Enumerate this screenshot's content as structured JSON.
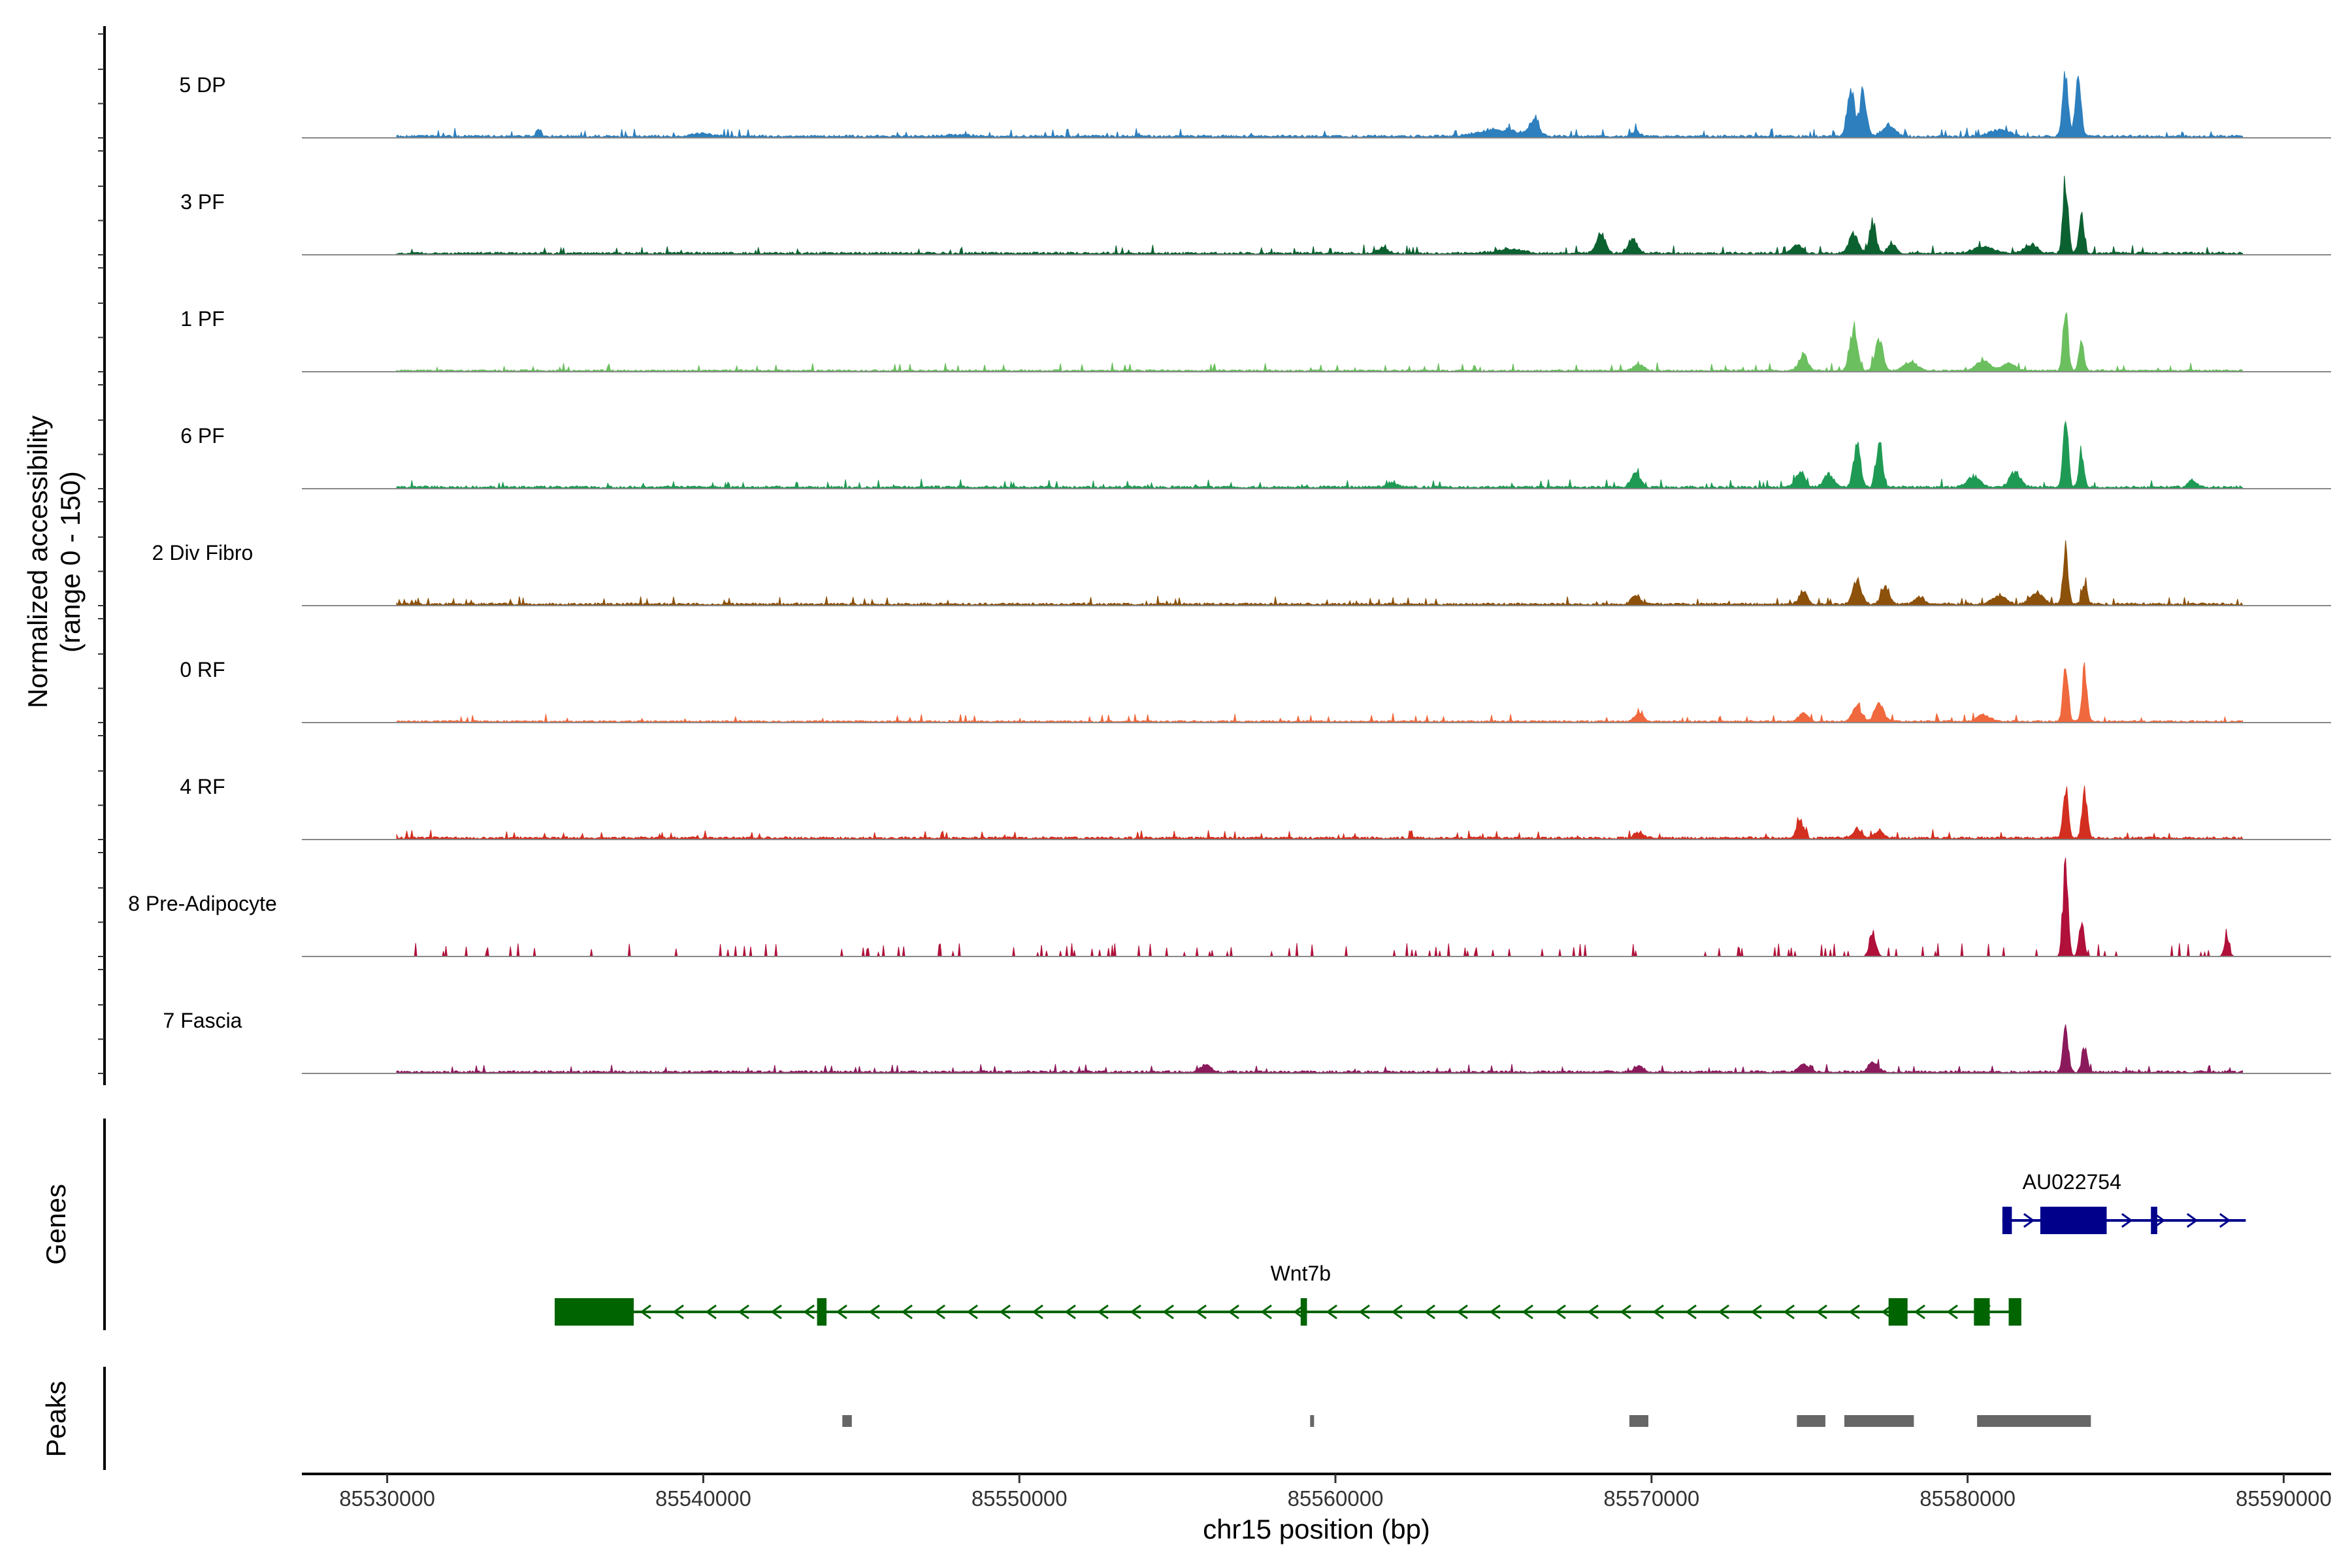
{
  "chart_data": {
    "type": "area",
    "title": "",
    "xlabel": "chr15 position (bp)",
    "ylabel_line1": "Normalized accessibility",
    "ylabel_line2": "(range 0 - 150)",
    "ylim": [
      0,
      150
    ],
    "xlim": [
      85527300,
      85591500
    ],
    "x_ticks": [
      85530000,
      85540000,
      85550000,
      85560000,
      85570000,
      85580000,
      85590000
    ],
    "x_tick_labels": [
      "85530000",
      "85540000",
      "85550000",
      "85560000",
      "85570000",
      "85580000",
      "85590000"
    ],
    "genes_label": "Genes",
    "peaks_label": "Peaks",
    "series": [
      {
        "name": "5 DP",
        "color": "#2d7fbe",
        "sparse": false,
        "baseline": 2,
        "peaks": [
          [
            85534800,
            9,
            70
          ],
          [
            85540000,
            3,
            300
          ],
          [
            85548000,
            2,
            400
          ],
          [
            85565200,
            8,
            600
          ],
          [
            85566300,
            20,
            140
          ],
          [
            85569500,
            6,
            120
          ],
          [
            85576300,
            55,
            110
          ],
          [
            85576700,
            50,
            110
          ],
          [
            85577500,
            12,
            200
          ],
          [
            85581000,
            8,
            300
          ],
          [
            85583100,
            70,
            90
          ],
          [
            85583500,
            60,
            90
          ]
        ]
      },
      {
        "name": "3 PF",
        "color": "#0c6131",
        "sparse": false,
        "baseline": 2,
        "peaks": [
          [
            85561500,
            6,
            150
          ],
          [
            85565500,
            5,
            400
          ],
          [
            85568400,
            22,
            140
          ],
          [
            85569400,
            17,
            140
          ],
          [
            85574600,
            10,
            160
          ],
          [
            85576400,
            22,
            140
          ],
          [
            85577000,
            35,
            100
          ],
          [
            85577600,
            12,
            120
          ],
          [
            85580500,
            8,
            300
          ],
          [
            85582000,
            10,
            200
          ],
          [
            85583100,
            85,
            80
          ],
          [
            85583600,
            40,
            80
          ]
        ]
      },
      {
        "name": "1 PF",
        "color": "#6bbf5f",
        "sparse": false,
        "baseline": 1.5,
        "peaks": [
          [
            85569600,
            8,
            150
          ],
          [
            85574800,
            18,
            140
          ],
          [
            85576400,
            48,
            120
          ],
          [
            85577200,
            35,
            120
          ],
          [
            85578200,
            10,
            200
          ],
          [
            85580500,
            12,
            200
          ],
          [
            85581300,
            8,
            200
          ],
          [
            85583100,
            65,
            80
          ],
          [
            85583600,
            30,
            80
          ]
        ]
      },
      {
        "name": "6 PF",
        "color": "#1f9a54",
        "sparse": false,
        "baseline": 2,
        "peaks": [
          [
            85561800,
            6,
            150
          ],
          [
            85569500,
            16,
            140
          ],
          [
            85574700,
            18,
            140
          ],
          [
            85575600,
            15,
            150
          ],
          [
            85576500,
            48,
            110
          ],
          [
            85577200,
            50,
            100
          ],
          [
            85580200,
            12,
            200
          ],
          [
            85581500,
            18,
            160
          ],
          [
            85583100,
            80,
            80
          ],
          [
            85583600,
            40,
            80
          ],
          [
            85587100,
            8,
            120
          ]
        ]
      },
      {
        "name": "2 Div Fibro",
        "color": "#8c510a",
        "sparse": false,
        "baseline": 2,
        "peaks": [
          [
            85569500,
            11,
            130
          ],
          [
            85574800,
            14,
            130
          ],
          [
            85576500,
            28,
            130
          ],
          [
            85577400,
            20,
            130
          ],
          [
            85578500,
            8,
            150
          ],
          [
            85581000,
            10,
            200
          ],
          [
            85582200,
            12,
            200
          ],
          [
            85583100,
            60,
            80
          ],
          [
            85583700,
            25,
            80
          ]
        ]
      },
      {
        "name": "0 RF",
        "color": "#f0683d",
        "sparse": false,
        "baseline": 1.5,
        "peaks": [
          [
            85569600,
            9,
            130
          ],
          [
            85574800,
            10,
            140
          ],
          [
            85576500,
            18,
            140
          ],
          [
            85577200,
            20,
            140
          ],
          [
            85580500,
            7,
            200
          ],
          [
            85583100,
            58,
            80
          ],
          [
            85583700,
            58,
            80
          ]
        ]
      },
      {
        "name": "4 RF",
        "color": "#d32f20",
        "sparse": false,
        "baseline": 2,
        "peaks": [
          [
            85569600,
            7,
            140
          ],
          [
            85574700,
            22,
            100
          ],
          [
            85576500,
            10,
            140
          ],
          [
            85577200,
            8,
            140
          ],
          [
            85583100,
            55,
            80
          ],
          [
            85583700,
            55,
            80
          ]
        ]
      },
      {
        "name": "8 Pre-Adipocyte",
        "color": "#b0103a",
        "sparse": true,
        "baseline": 0,
        "peaks": [
          [
            85583100,
            100,
            80
          ],
          [
            85583600,
            40,
            80
          ],
          [
            85577000,
            28,
            100
          ],
          [
            85588200,
            18,
            80
          ]
        ]
      },
      {
        "name": "7 Fascia",
        "color": "#8b1a5c",
        "sparse": false,
        "baseline": 2,
        "peaks": [
          [
            85555900,
            8,
            150
          ],
          [
            85569600,
            8,
            140
          ],
          [
            85574800,
            8,
            140
          ],
          [
            85577000,
            12,
            140
          ],
          [
            85583100,
            55,
            80
          ],
          [
            85583700,
            30,
            80
          ]
        ]
      }
    ],
    "genes": [
      {
        "name": "AU022754",
        "color": "#00008b",
        "strand": "+",
        "start": 85581100,
        "end": 85588800,
        "row": 0,
        "exons": [
          [
            85581100,
            85581400
          ],
          [
            85582300,
            85584400
          ],
          [
            85585800,
            85586000
          ]
        ],
        "thick": [
          85582300,
          85584400
        ]
      },
      {
        "name": "Wnt7b",
        "color": "#006400",
        "strand": "-",
        "start": 85535300,
        "end": 85581700,
        "row": 1,
        "exons": [
          [
            85535300,
            85537800
          ],
          [
            85543600,
            85543900
          ],
          [
            85558900,
            85559100
          ],
          [
            85577500,
            85578100
          ],
          [
            85580200,
            85580700
          ],
          [
            85581300,
            85581700
          ]
        ],
        "thick": [
          85535300,
          85537800
        ]
      }
    ],
    "peak_regions": [
      [
        85544400,
        85544700
      ],
      [
        85559200,
        85559300
      ],
      [
        85569300,
        85569900
      ],
      [
        85574600,
        85575500
      ],
      [
        85576100,
        85578300
      ],
      [
        85580300,
        85583900
      ]
    ]
  }
}
